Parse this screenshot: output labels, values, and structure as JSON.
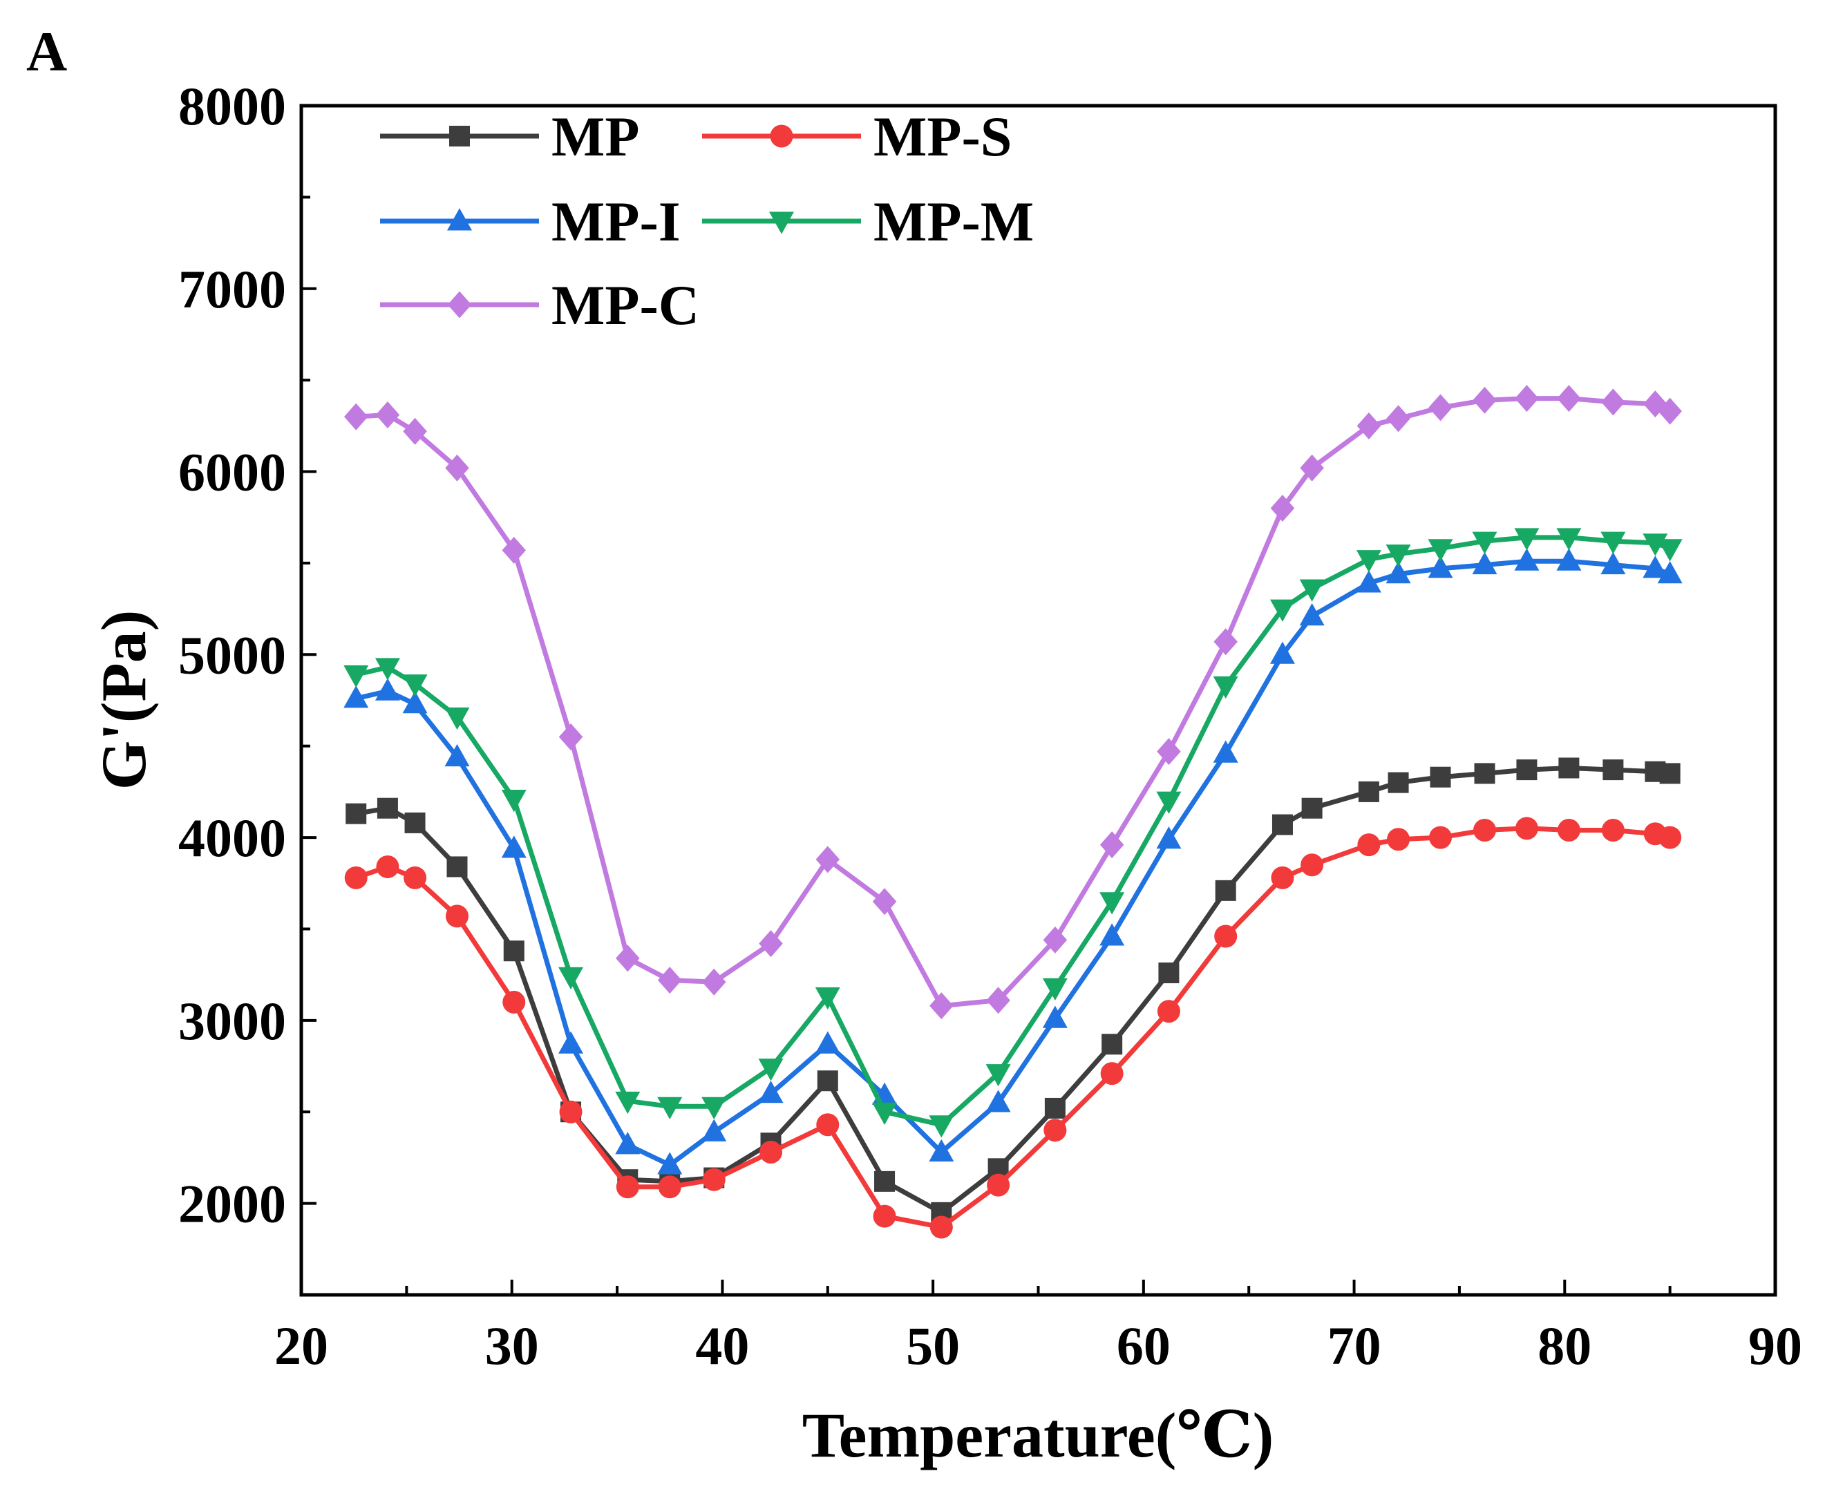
{
  "panel_label": "A",
  "chart_data": {
    "type": "line",
    "title": "",
    "xlabel": "Temperature(℃)",
    "ylabel": "G'(Pa)",
    "xlim": [
      20,
      90
    ],
    "ylim": [
      1500,
      8000
    ],
    "xticks": [
      20,
      30,
      40,
      50,
      60,
      70,
      80,
      90
    ],
    "yticks": [
      2000,
      3000,
      4000,
      5000,
      6000,
      7000,
      8000
    ],
    "x": [
      22.6,
      24.1,
      25.4,
      27.4,
      30.1,
      32.8,
      35.5,
      37.5,
      39.6,
      42.3,
      45.0,
      47.7,
      50.4,
      53.1,
      55.8,
      58.5,
      61.2,
      63.9,
      66.6,
      68.0,
      70.7,
      72.1,
      74.1,
      76.2,
      78.2,
      80.2,
      82.3,
      84.3,
      85.0
    ],
    "legend": {
      "position": "top-left",
      "columns": 2
    },
    "series": [
      {
        "name": "MP",
        "color": "#3d3d3d",
        "marker": "square",
        "values": [
          4130,
          4160,
          4080,
          3840,
          3380,
          2500,
          2130,
          2120,
          2140,
          2330,
          2670,
          2120,
          1950,
          2190,
          2520,
          2870,
          3260,
          3710,
          4070,
          4160,
          4250,
          4300,
          4330,
          4350,
          4370,
          4380,
          4370,
          4360,
          4350
        ]
      },
      {
        "name": "MP-S",
        "color": "#f23a3a",
        "marker": "circle",
        "values": [
          3780,
          3840,
          3780,
          3570,
          3100,
          2500,
          2090,
          2090,
          2130,
          2280,
          2430,
          1930,
          1870,
          2100,
          2400,
          2710,
          3050,
          3460,
          3780,
          3850,
          3960,
          3990,
          4000,
          4040,
          4050,
          4040,
          4040,
          4020,
          4000
        ]
      },
      {
        "name": "MP-I",
        "color": "#1f72e0",
        "marker": "triangle-up",
        "values": [
          4760,
          4800,
          4730,
          4440,
          3940,
          2870,
          2320,
          2210,
          2390,
          2600,
          2870,
          2590,
          2280,
          2550,
          3010,
          3460,
          3990,
          4460,
          5000,
          5210,
          5390,
          5440,
          5470,
          5490,
          5510,
          5510,
          5490,
          5470,
          5440
        ]
      },
      {
        "name": "MP-M",
        "color": "#17a863",
        "marker": "triangle-down",
        "values": [
          4890,
          4930,
          4840,
          4660,
          4210,
          3240,
          2560,
          2530,
          2530,
          2740,
          3130,
          2500,
          2430,
          2710,
          3180,
          3650,
          4200,
          4830,
          5250,
          5360,
          5520,
          5550,
          5580,
          5620,
          5640,
          5640,
          5620,
          5610,
          5580
        ]
      },
      {
        "name": "MP-C",
        "color": "#c07ae0",
        "marker": "diamond",
        "values": [
          6300,
          6310,
          6220,
          6020,
          5570,
          4550,
          3340,
          3220,
          3210,
          3420,
          3880,
          3650,
          3080,
          3110,
          3440,
          3960,
          4470,
          5070,
          5800,
          6020,
          6250,
          6290,
          6350,
          6390,
          6400,
          6400,
          6380,
          6370,
          6330
        ]
      }
    ]
  }
}
